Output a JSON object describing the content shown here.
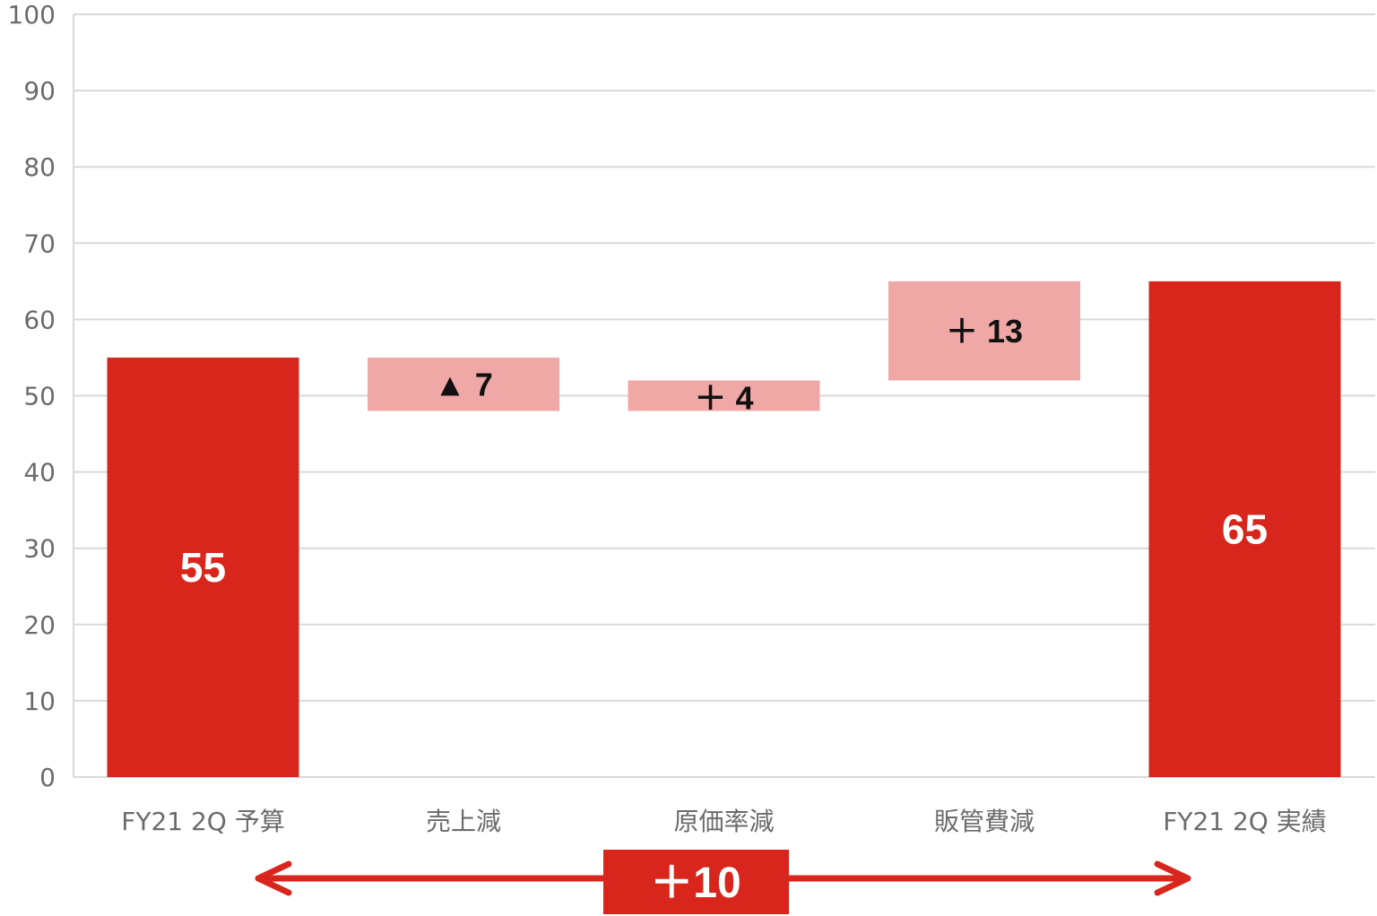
{
  "chart_data": {
    "type": "bar",
    "subtype": "waterfall",
    "ylim": [
      0,
      100
    ],
    "yticks": [
      "0",
      "10",
      "20",
      "30",
      "40",
      "50",
      "60",
      "70",
      "80",
      "90",
      "100"
    ],
    "grid": true,
    "categories": [
      "FY21 2Q 予算",
      "売上減",
      "原価率減",
      "販管費減",
      "FY21 2Q 実績"
    ],
    "bars": [
      {
        "category": "FY21 2Q 予算",
        "kind": "total",
        "start": 0,
        "end": 55,
        "label": "55"
      },
      {
        "category": "売上減",
        "kind": "decrease",
        "start": 55,
        "end": 48,
        "label": "▲ 7"
      },
      {
        "category": "原価率減",
        "kind": "increase",
        "start": 48,
        "end": 52,
        "label": "＋ 4"
      },
      {
        "category": "販管費減",
        "kind": "increase",
        "start": 52,
        "end": 65,
        "label": "＋ 13"
      },
      {
        "category": "FY21 2Q 実績",
        "kind": "total",
        "start": 0,
        "end": 65,
        "label": "65"
      }
    ],
    "difference": {
      "from": "FY21 2Q 予算",
      "to": "FY21 2Q 実績",
      "value": 10,
      "label": "＋10"
    },
    "colors": {
      "total": "#d9261c",
      "change": "#f0a8a6",
      "arrow": "#d9261c",
      "grid": "#d9d9d9"
    }
  }
}
